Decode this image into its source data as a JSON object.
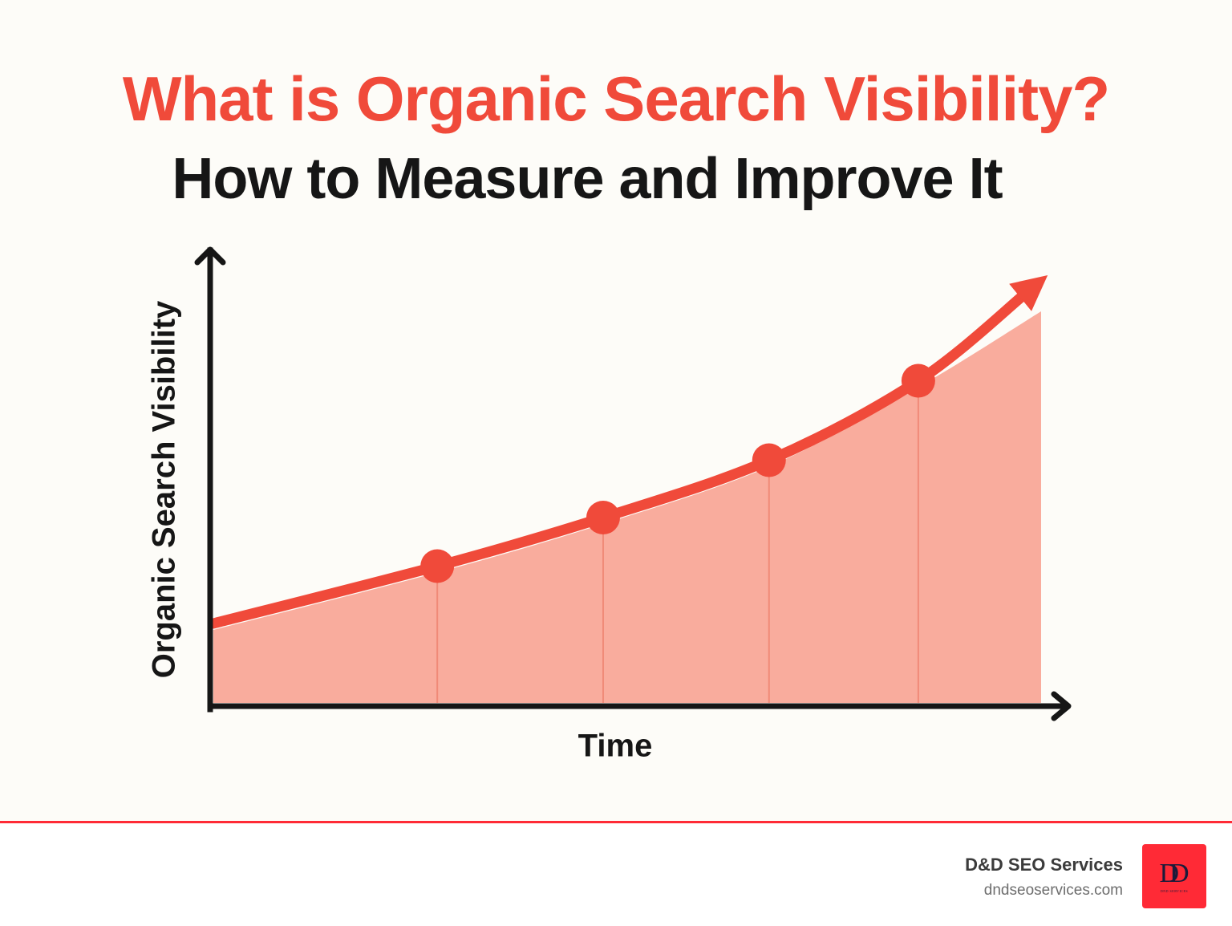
{
  "header": {
    "title": "What is Organic Search Visibility?",
    "subtitle": "How to Measure and Improve It"
  },
  "colors": {
    "title_red": "#f04a3a",
    "text_dark": "#161616",
    "curve": "#f04a3a",
    "area_fill": "#f9a898",
    "background": "#fdfcf8",
    "footer_rule": "#ff2a36",
    "logo_bg": "#ff2a36"
  },
  "chart_data": {
    "type": "area",
    "title": "",
    "xlabel": "Time",
    "ylabel": "Organic Search Visibility",
    "x": [
      0,
      0.27,
      0.47,
      0.67,
      0.85,
      1.0
    ],
    "values": [
      18,
      31,
      42,
      55,
      73,
      96
    ],
    "markers_at_index": [
      1,
      2,
      3,
      4
    ],
    "xlim": [
      0,
      1
    ],
    "ylim": [
      0,
      100
    ],
    "grid": false,
    "legend": "none",
    "tick_labels": "none",
    "end_arrow": true,
    "annotation": "Upward trend arrow at end of curve"
  },
  "footer": {
    "brand_name": "D&D SEO Services",
    "brand_url": "dndseoservices.com",
    "logo_mark": "DD",
    "logo_caption": "DND SERVICES"
  }
}
